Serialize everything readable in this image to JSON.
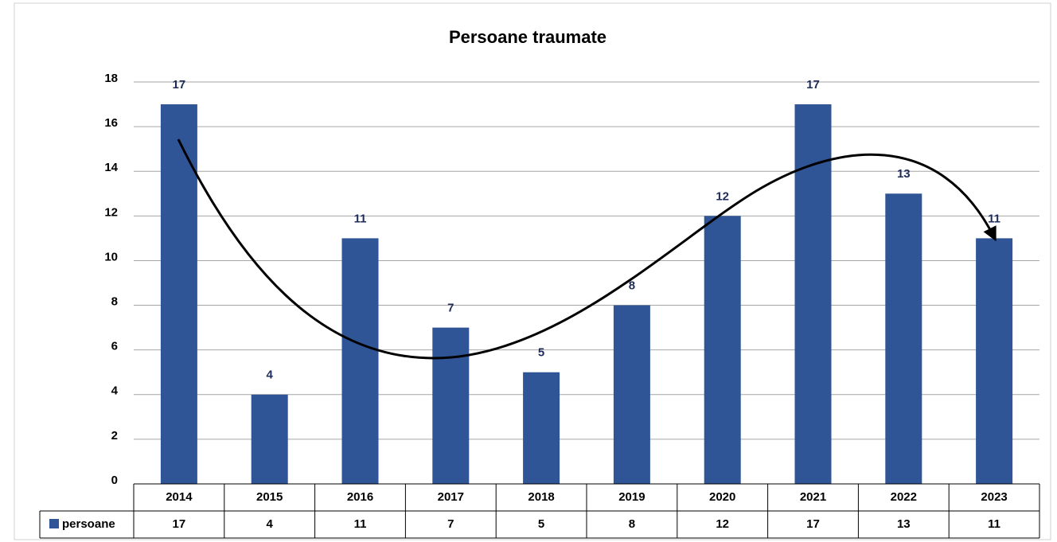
{
  "chart_data": {
    "type": "bar",
    "title": "Persoane traumate",
    "categories": [
      "2014",
      "2015",
      "2016",
      "2017",
      "2018",
      "2019",
      "2020",
      "2021",
      "2022",
      "2023"
    ],
    "series": [
      {
        "name": "persoane",
        "color": "#2f5597",
        "values": [
          17,
          4,
          11,
          7,
          5,
          8,
          12,
          17,
          13,
          11
        ]
      }
    ],
    "ylim": [
      0,
      18
    ],
    "yticks": [
      0,
      2,
      4,
      6,
      8,
      10,
      12,
      14,
      16,
      18
    ],
    "grid": true
  }
}
